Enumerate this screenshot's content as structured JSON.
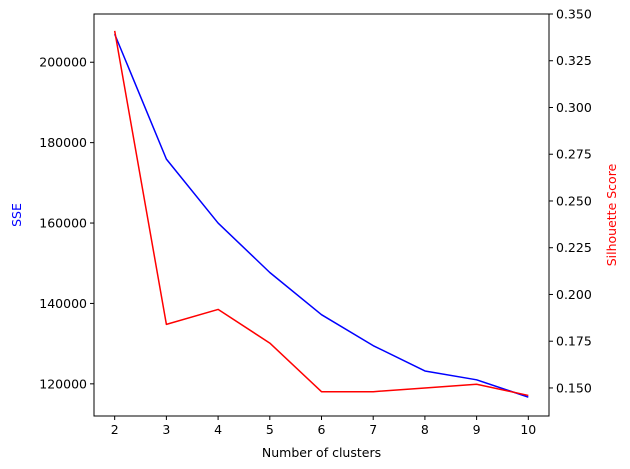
{
  "chart_data": {
    "type": "line",
    "xlabel": "Number of clusters",
    "ylabel_left": "SSE",
    "ylabel_right": "Silhouette Score",
    "x": [
      2,
      3,
      4,
      5,
      6,
      7,
      8,
      9,
      10
    ],
    "xlim": [
      1.6,
      10.4
    ],
    "ylim_left": [
      112000,
      212000
    ],
    "ylim_right": [
      0.135,
      0.35
    ],
    "xticks": [
      "2",
      "3",
      "4",
      "5",
      "6",
      "7",
      "8",
      "9",
      "10"
    ],
    "yticks_left": [
      "120000",
      "140000",
      "160000",
      "180000",
      "200000"
    ],
    "yticks_right": [
      "0.150",
      "0.175",
      "0.200",
      "0.225",
      "0.250",
      "0.275",
      "0.300",
      "0.325",
      "0.350"
    ],
    "grid": false,
    "series": [
      {
        "axis": "left",
        "color": "#0000ff",
        "values": [
          207000,
          175900,
          160000,
          147700,
          137200,
          129500,
          123200,
          121000,
          116700
        ]
      },
      {
        "axis": "right",
        "color": "#ff0000",
        "values": [
          0.341,
          0.184,
          0.192,
          0.174,
          0.148,
          0.148,
          0.15,
          0.152,
          0.146
        ]
      }
    ],
    "colors": {
      "left_label": "#0000ff",
      "right_label": "#ff0000",
      "axes": "#000000"
    }
  }
}
